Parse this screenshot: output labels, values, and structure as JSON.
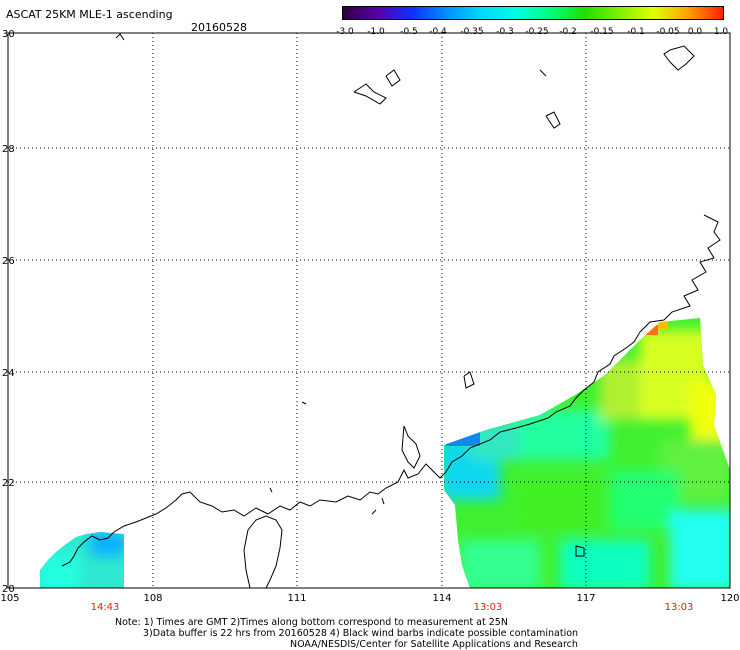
{
  "title": "ASCAT 25KM MLE-1 ascending",
  "date": "20160528",
  "colorbar": {
    "labels": [
      "-3.0",
      "-1.0",
      "-0.5",
      "-0.4",
      "-0.35",
      "-0.3",
      "-0.25",
      "-0.2",
      "-0.15",
      "-0.1",
      "-0.05",
      "0.0",
      "1.0"
    ],
    "colors": [
      "#2b0040",
      "#5a00a8",
      "#1030ff",
      "#0090ff",
      "#00d8ff",
      "#00ffe0",
      "#00ff80",
      "#20e000",
      "#80f000",
      "#e0ff00",
      "#ffa000",
      "#ff2000"
    ]
  },
  "map": {
    "lon_range": [
      105,
      120
    ],
    "lat_range": [
      20,
      30
    ],
    "lon_ticks": [
      "105",
      "108",
      "111",
      "114",
      "117",
      "120"
    ],
    "lat_ticks": [
      "30",
      "28",
      "26",
      "24",
      "22",
      "20"
    ],
    "pass_times": [
      "14:43",
      "13:03",
      "13:03"
    ],
    "land_color": "#ffffff",
    "coast_color": "#000000",
    "grid_style": "dotted"
  },
  "notes": {
    "line1": "Note: 1) Times are GMT 2)Times along bottom correspond to measurement at 25N",
    "line2": "3)Data buffer is 22 hrs from 20160528 4) Black wind barbs indicate possible contamination",
    "line3": "NOAA/NESDIS/Center for Satellite Applications and Research"
  }
}
